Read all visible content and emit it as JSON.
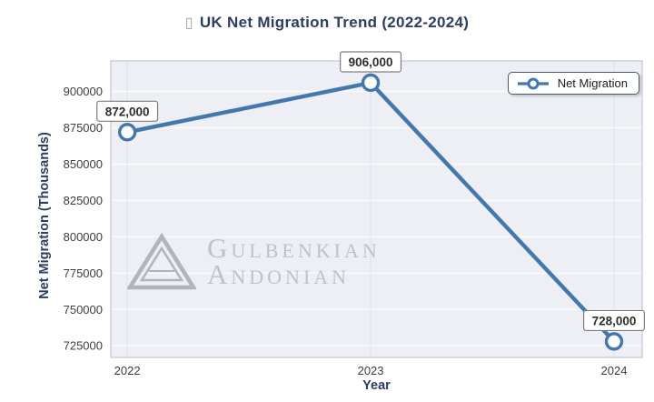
{
  "title": {
    "icon": "▯",
    "text": "UK Net Migration Trend (2022-2024)"
  },
  "chart_data": {
    "type": "line",
    "categories": [
      "2022",
      "2023",
      "2024"
    ],
    "series": [
      {
        "name": "Net Migration",
        "values": [
          872000,
          906000,
          728000
        ]
      }
    ],
    "point_labels": [
      "872,000",
      "906,000",
      "728,000"
    ],
    "title": "UK Net Migration Trend (2022-2024)",
    "xlabel": "Year",
    "ylabel": "Net Migration (Thousands)",
    "yticks": [
      725000,
      750000,
      775000,
      800000,
      825000,
      850000,
      875000,
      900000
    ],
    "ylim": [
      717000,
      921000
    ],
    "grid": true,
    "legend": {
      "label": "Net Migration",
      "position": "upper right"
    },
    "colors": {
      "line": "#4377ae",
      "marker_fill": "#ffffff",
      "plot_bg": "#edeff5",
      "grid_h": "#f8f9fb",
      "grid_v": "#e0e3eb",
      "plot_border": "#c7cbd6",
      "tick_text": "#3d3d3d",
      "axis_label": "#2d3e63",
      "point_label_text": "#2e2e2e",
      "point_label_border": "#7d7d7d"
    }
  },
  "watermark": {
    "line1": "Gulbenkian",
    "line2": "Andonian"
  }
}
